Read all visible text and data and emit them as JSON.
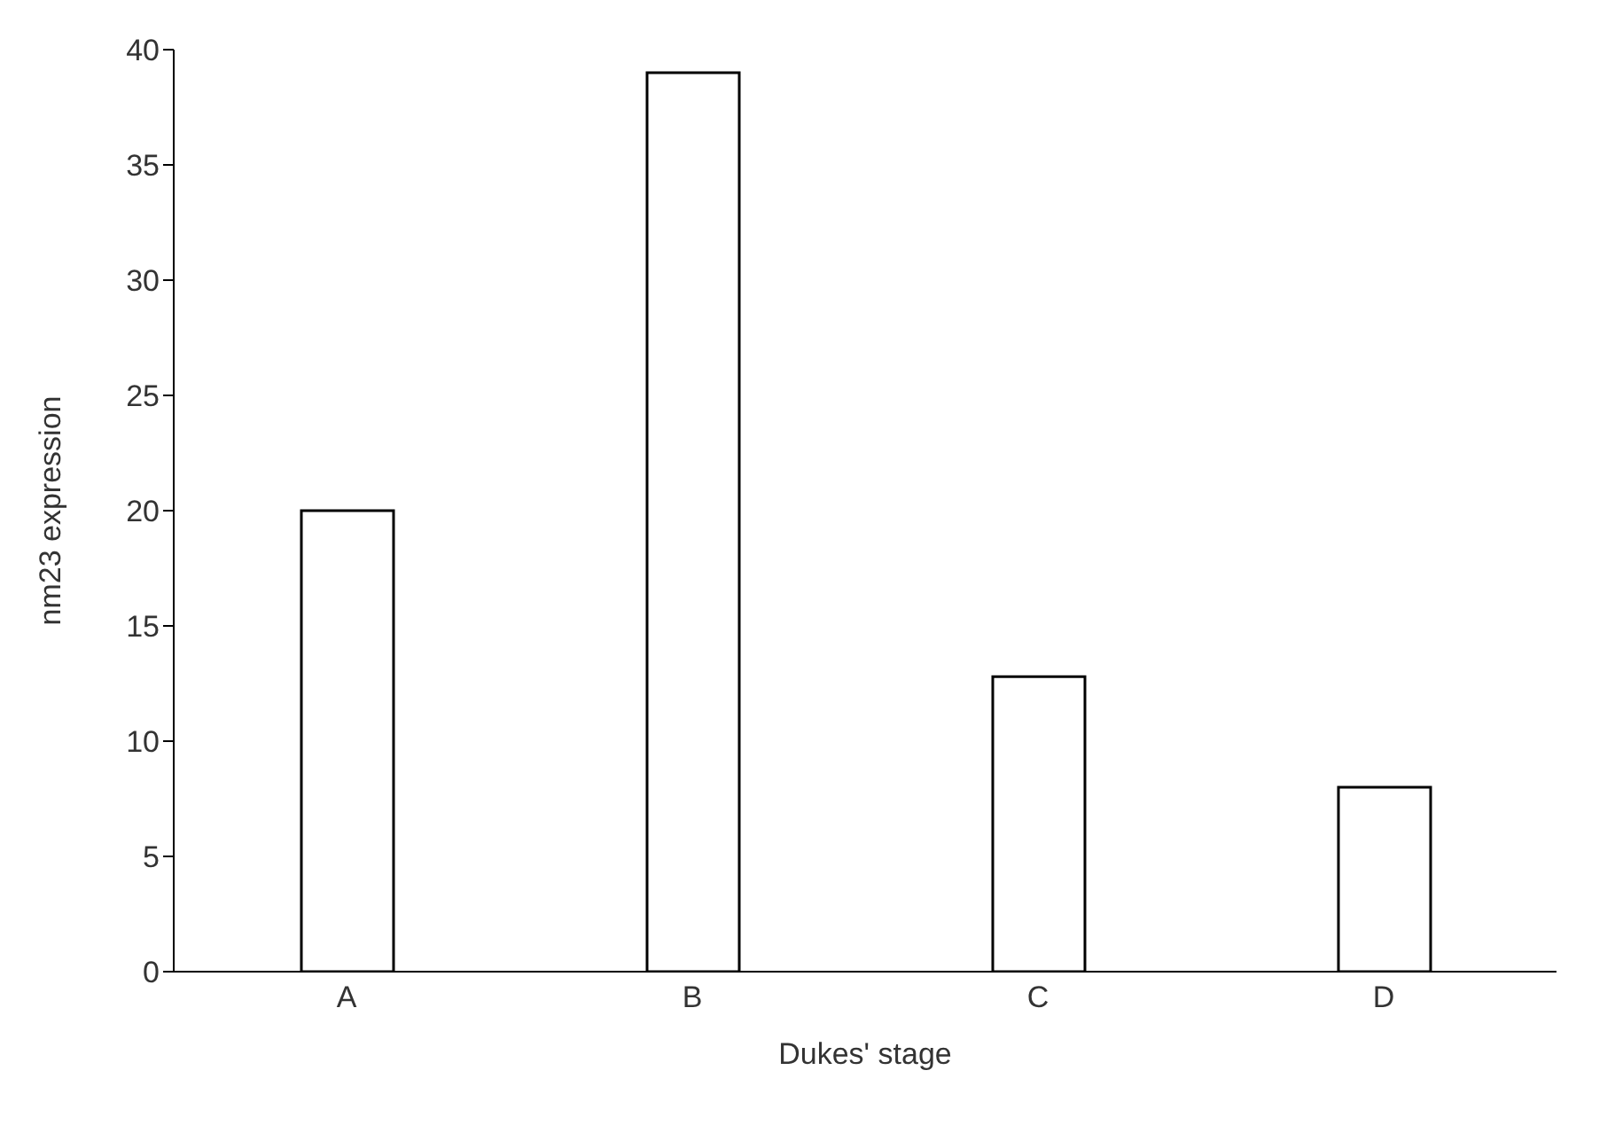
{
  "chart_data": {
    "type": "bar",
    "xlabel": "Dukes' stage",
    "ylabel": "nm23 expression",
    "categories": [
      "A",
      "B",
      "C",
      "D"
    ],
    "values": [
      20,
      39,
      12.8,
      8
    ],
    "color": "#ffffff",
    "ylim": [
      0,
      40
    ],
    "yticks": [
      0,
      5,
      10,
      15,
      20,
      25,
      30,
      35,
      40
    ],
    "grid": false
  }
}
